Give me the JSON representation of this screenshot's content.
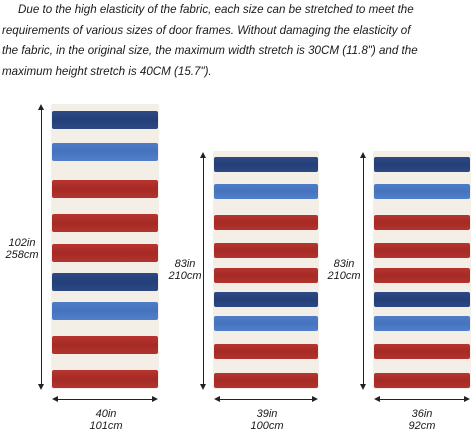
{
  "description": [
    "Due to the high elasticity of the fabric, each size can be stretched to meet the",
    "requirements of various sizes of door frames. Without damaging the elasticity of",
    "the fabric, in the original size, the maximum width stretch is 30CM (11.8\") and the",
    "maximum height stretch is 40CM (15.7\")."
  ],
  "colors": {
    "red": "#b3332d",
    "navy": "#2b4782",
    "blue": "#4f7cc7",
    "cream": "#f3efe7"
  },
  "panels": [
    {
      "height_in": "102in",
      "height_cm": "258cm",
      "width_in": "40in",
      "width_cm": "101cm",
      "stripes": [
        "navy",
        "blue",
        "red",
        "red",
        "red",
        "navy",
        "blue",
        "red",
        "red"
      ]
    },
    {
      "height_in": "83in",
      "height_cm": "210cm",
      "width_in": "39in",
      "width_cm": "100cm",
      "stripes": [
        "navy",
        "blue",
        "red",
        "red",
        "red",
        "navy",
        "blue",
        "red",
        "red"
      ]
    },
    {
      "height_in": "83in",
      "height_cm": "210cm",
      "width_in": "36in",
      "width_cm": "92cm",
      "stripes": [
        "navy",
        "blue",
        "red",
        "red",
        "red",
        "navy",
        "blue",
        "red",
        "red"
      ]
    }
  ]
}
